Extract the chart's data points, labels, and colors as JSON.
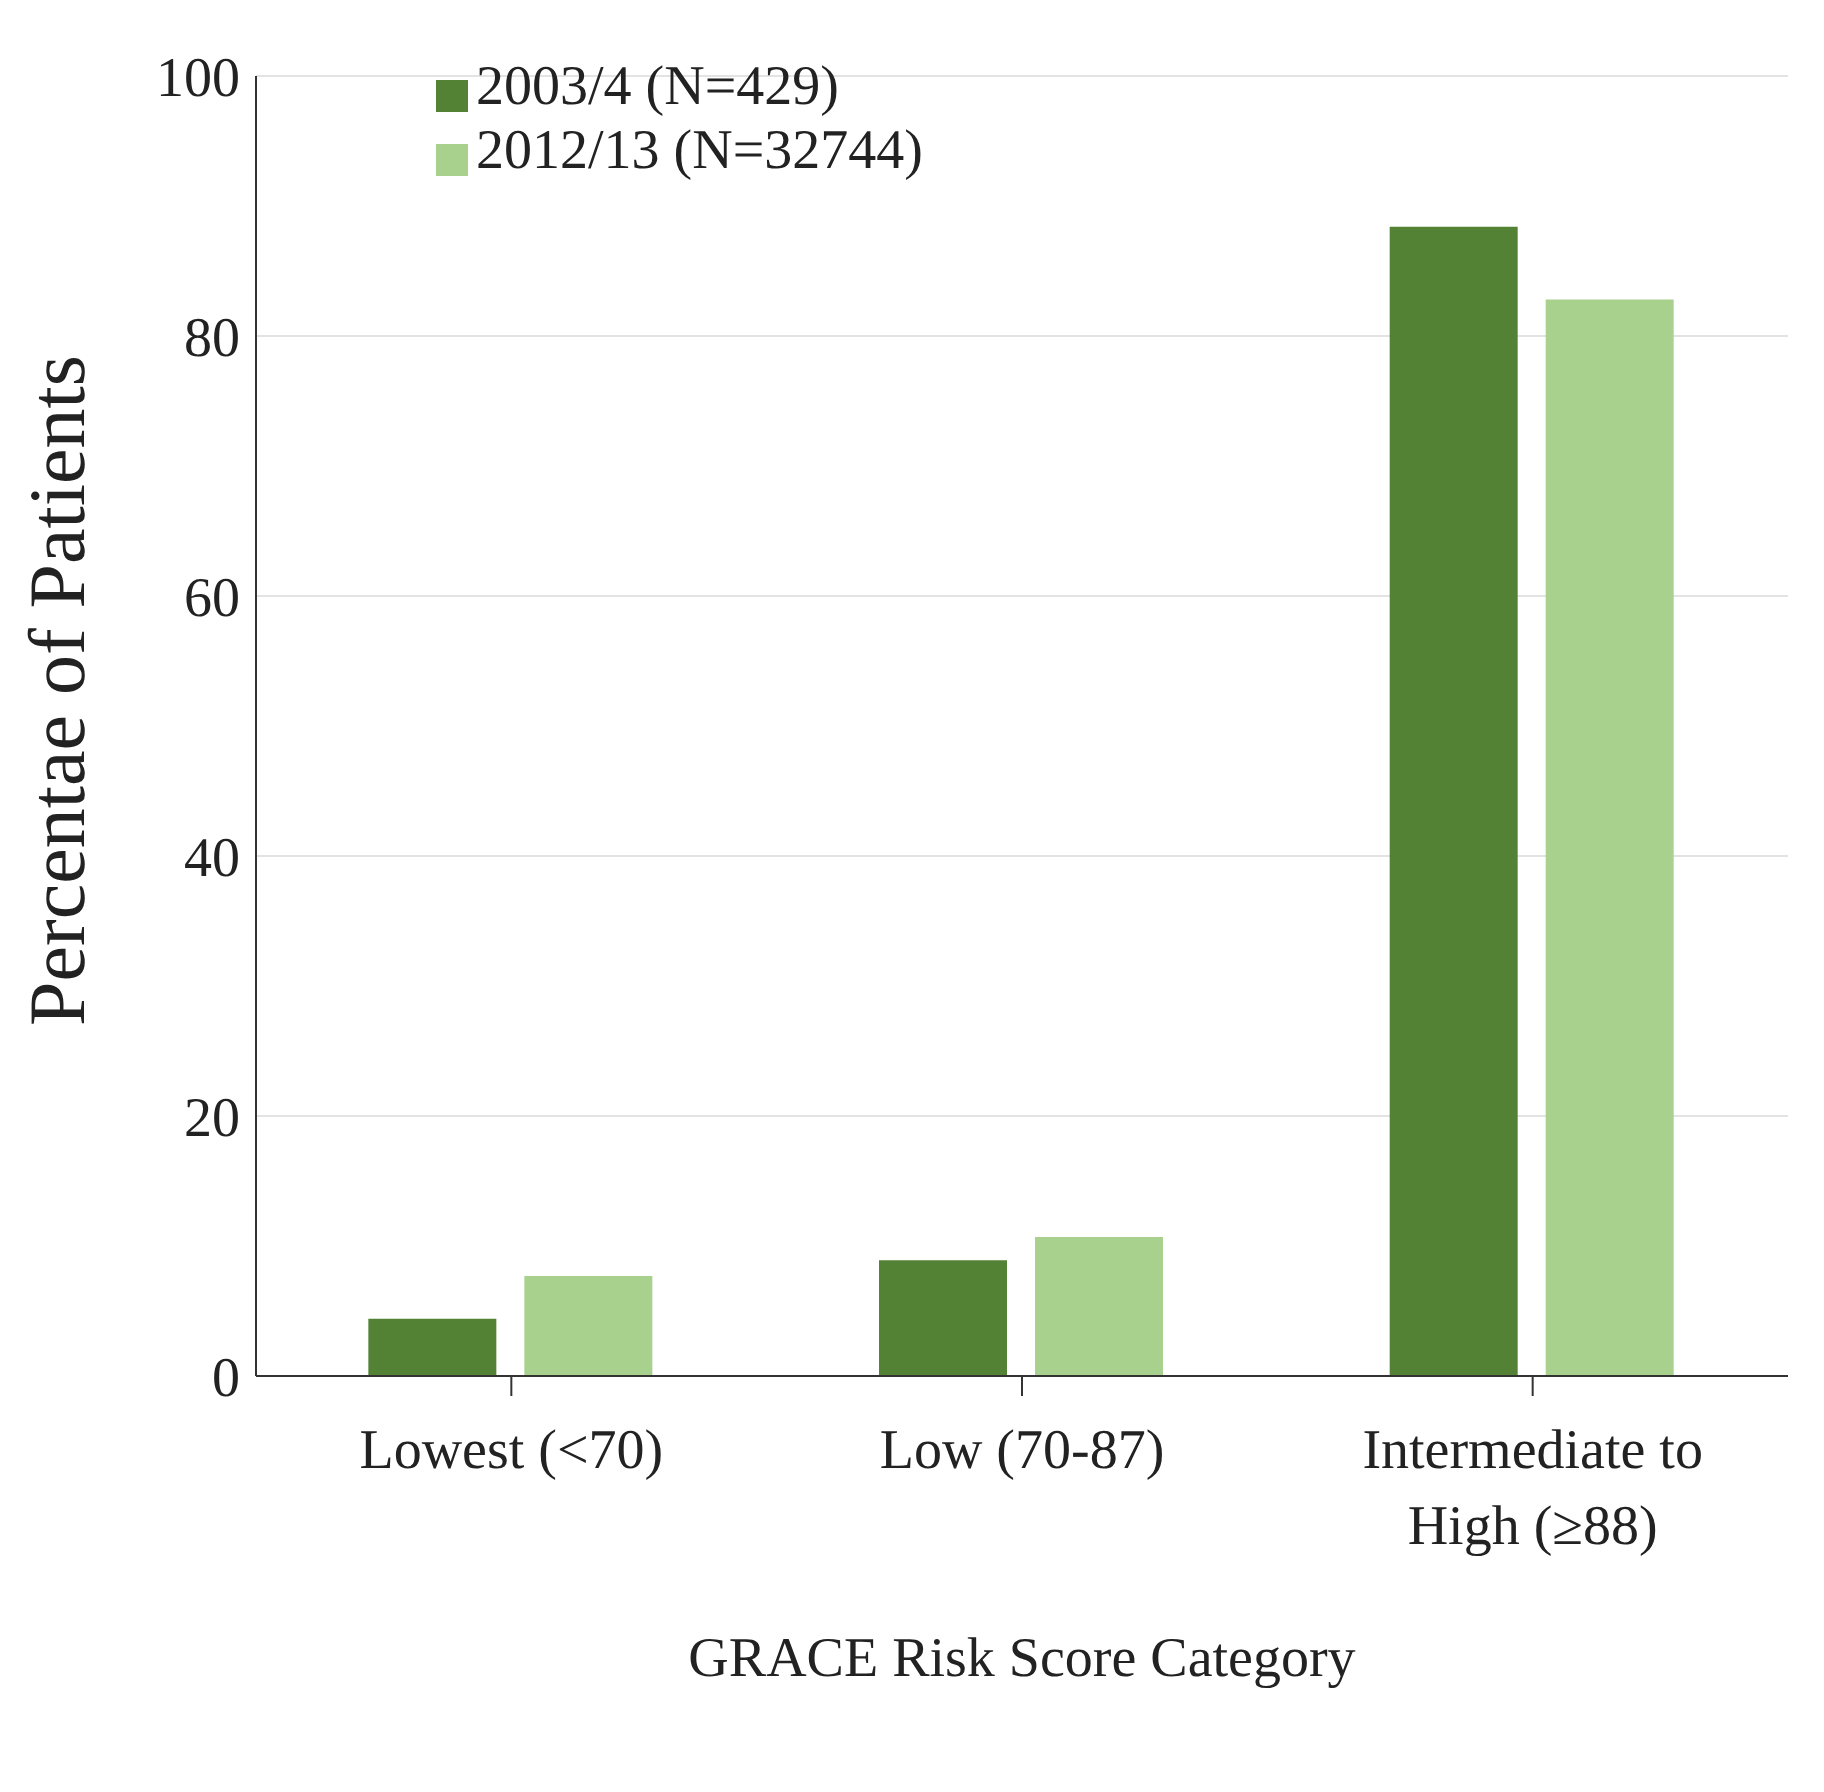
{
  "chart_data": {
    "type": "bar",
    "xlabel": "GRACE Risk Score Category",
    "ylabel": "Percentae of Patients",
    "categories": [
      "Lowest (<70)",
      "Low (70-87)",
      "Intermediate to High (≥88)"
    ],
    "series": [
      {
        "name": "2003/4 (N=429)",
        "color": "#548235",
        "values": [
          4.4,
          8.9,
          88.4
        ]
      },
      {
        "name": "2012/13 (N=32744)",
        "color": "#a9d18e",
        "values": [
          7.7,
          10.7,
          82.8
        ]
      }
    ],
    "ylim": [
      0,
      100
    ],
    "yticks": [
      0,
      20,
      40,
      60,
      80,
      100
    ],
    "grid": "y",
    "legend": "top left"
  }
}
